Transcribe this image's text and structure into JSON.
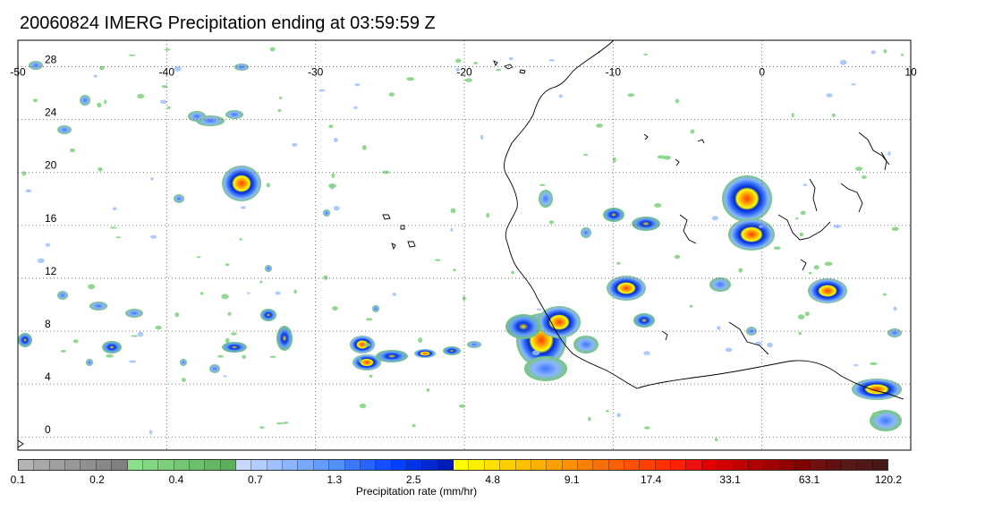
{
  "title": "20060824 IMERG Precipitation ending at 03:59:59 Z",
  "map": {
    "lon_labels": [
      "-50",
      "-40",
      "-30",
      "-20",
      "-10",
      "0",
      "10"
    ],
    "lon_values": [
      -50,
      -40,
      -30,
      -20,
      -10,
      0,
      10
    ],
    "lat_labels": [
      "28",
      "24",
      "20",
      "16",
      "12",
      "8",
      "4",
      "0"
    ],
    "lat_values": [
      28,
      24,
      20,
      16,
      12,
      8,
      4,
      0
    ],
    "lon_range": [
      -50,
      10
    ],
    "lat_range": [
      -1,
      30
    ],
    "grid": "dotted",
    "coastline": "West Africa"
  },
  "colorbar": {
    "title": "Precipitation rate (mm/hr)",
    "tick_labels": [
      "0.1",
      "0.2",
      "0.4",
      "0.7",
      "1.3",
      "2.5",
      "4.8",
      "9.1",
      "17.4",
      "33.1",
      "63.1",
      "120.2"
    ],
    "colors": [
      "#b4b4b4",
      "#a8a8a8",
      "#a0a0a0",
      "#989898",
      "#909090",
      "#888888",
      "#808080",
      "#8ce08c",
      "#84d884",
      "#7cd07c",
      "#74c874",
      "#6cc06c",
      "#64b864",
      "#5cb05c",
      "#c8d8ff",
      "#b4ccff",
      "#a0c0ff",
      "#8cb4ff",
      "#78a8ff",
      "#649cff",
      "#5090ff",
      "#3c78ff",
      "#2864ff",
      "#1450ff",
      "#0040ff",
      "#0034e8",
      "#0028d0",
      "#001cb8",
      "#ffff00",
      "#fff000",
      "#ffe000",
      "#ffd000",
      "#ffc000",
      "#ffb000",
      "#ffa000",
      "#ff9000",
      "#ff8000",
      "#ff7000",
      "#ff6000",
      "#ff5000",
      "#ff4000",
      "#ff3000",
      "#ff2000",
      "#f01010",
      "#e00000",
      "#d00000",
      "#c00000",
      "#b00000",
      "#a00000",
      "#900000",
      "#800000",
      "#701010",
      "#601010",
      "#581818",
      "#501818",
      "#481818"
    ]
  },
  "colors": {
    "land_outline": "#000000",
    "grid": "#555555",
    "frame": "#000000"
  }
}
